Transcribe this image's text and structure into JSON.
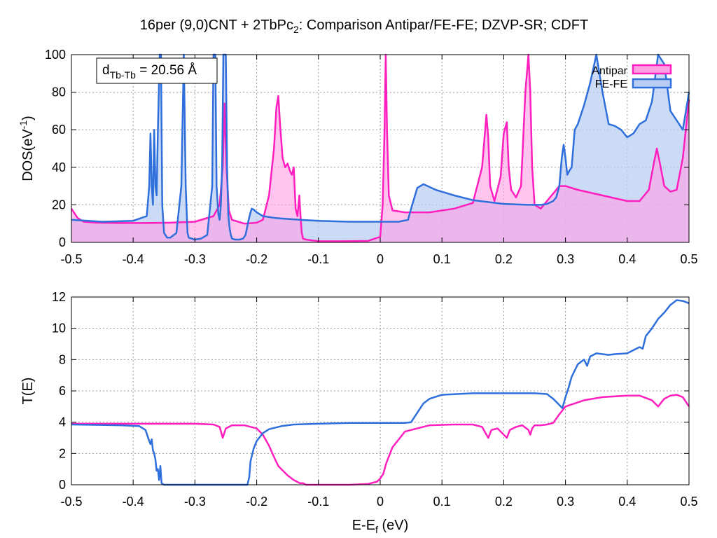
{
  "figure": {
    "title": {
      "main": "16per (9,0)CNT + 2TbPc",
      "sub": "2",
      "rest": ": Comparison Antipar/FE-FE; DZVP-SR; CDFT"
    },
    "annotation": {
      "base": "d",
      "sub": "Tb-Tb",
      "rest": " = 20.56 Å"
    },
    "top_ylabel": {
      "base": "DOS(eV",
      "sup": "-1",
      "close": ")"
    },
    "bottom_ylabel": "T(E)",
    "xlabel": {
      "base": "E-E",
      "sub": "f",
      "rest": " (eV)"
    }
  },
  "colors": {
    "antipar": "#ff1fbf",
    "antipar_fill": "#ff9fe4",
    "fefe": "#2f6fdc",
    "fefe_fill": "#b9cdf2",
    "overlap_fill": "#c5b0ea",
    "grid": "#9a9a9a"
  },
  "chart_data": [
    {
      "type": "area",
      "panel": "top",
      "xlim": [
        -0.5,
        0.5
      ],
      "ylim": [
        0,
        100
      ],
      "x_ticks": [
        "-0.5",
        "-0.4",
        "-0.3",
        "-0.2",
        "-0.1",
        "0",
        "0.1",
        "0.2",
        "0.3",
        "0.4",
        "0.5"
      ],
      "y_ticks": [
        "0",
        "20",
        "40",
        "60",
        "80",
        "100"
      ],
      "grid": true,
      "legend": "top-right",
      "series": [
        {
          "name": "Antipar",
          "x": [
            -0.5,
            -0.49,
            -0.48,
            -0.46,
            -0.42,
            -0.38,
            -0.34,
            -0.3,
            -0.27,
            -0.26,
            -0.255,
            -0.252,
            -0.249,
            -0.245,
            -0.24,
            -0.22,
            -0.2,
            -0.19,
            -0.18,
            -0.172,
            -0.168,
            -0.165,
            -0.162,
            -0.158,
            -0.154,
            -0.15,
            -0.146,
            -0.143,
            -0.14,
            -0.137,
            -0.134,
            -0.131,
            -0.129,
            -0.127,
            -0.125,
            -0.12,
            -0.1,
            -0.06,
            -0.02,
            0.0,
            0.004,
            0.007,
            0.009,
            0.011,
            0.014,
            0.02,
            0.04,
            0.08,
            0.12,
            0.15,
            0.165,
            0.172,
            0.175,
            0.178,
            0.185,
            0.195,
            0.2,
            0.205,
            0.208,
            0.212,
            0.22,
            0.228,
            0.235,
            0.24,
            0.243,
            0.246,
            0.25,
            0.26,
            0.27,
            0.28,
            0.29,
            0.3,
            0.32,
            0.36,
            0.4,
            0.42,
            0.435,
            0.443,
            0.448,
            0.453,
            0.46,
            0.47,
            0.48,
            0.49,
            0.5
          ],
          "y": [
            18,
            13,
            11,
            10.5,
            10.3,
            10.3,
            10.5,
            11,
            14,
            20,
            40,
            74,
            40,
            17,
            12,
            10,
            10.5,
            12,
            25,
            50,
            72,
            78,
            62,
            45,
            40,
            42,
            38,
            36,
            40,
            18,
            14,
            25,
            14,
            5,
            2,
            1.5,
            0.6,
            0.6,
            0.8,
            3,
            20,
            60,
            100,
            60,
            25,
            17,
            16,
            16,
            18,
            21,
            40,
            68,
            55,
            30,
            22,
            35,
            58,
            64,
            40,
            28,
            24,
            30,
            80,
            100,
            80,
            40,
            20,
            18,
            22,
            26,
            30,
            30,
            28,
            25,
            22,
            22,
            28,
            42,
            50,
            42,
            30,
            27,
            28,
            45,
            76
          ]
        },
        {
          "name": "FE-FE",
          "x": [
            -0.5,
            -0.45,
            -0.4,
            -0.378,
            -0.374,
            -0.372,
            -0.37,
            -0.368,
            -0.366,
            -0.364,
            -0.362,
            -0.36,
            -0.357,
            -0.355,
            -0.353,
            -0.35,
            -0.345,
            -0.34,
            -0.33,
            -0.322,
            -0.318,
            -0.315,
            -0.312,
            -0.31,
            -0.3,
            -0.29,
            -0.28,
            -0.272,
            -0.27,
            -0.267,
            -0.265,
            -0.262,
            -0.26,
            -0.258,
            -0.256,
            -0.254,
            -0.252,
            -0.25,
            -0.248,
            -0.246,
            -0.244,
            -0.242,
            -0.24,
            -0.235,
            -0.228,
            -0.222,
            -0.218,
            -0.213,
            -0.21,
            -0.208,
            -0.205,
            -0.2,
            -0.19,
            -0.17,
            -0.15,
            -0.13,
            -0.1,
            -0.05,
            0.0,
            0.03,
            0.045,
            0.05,
            0.06,
            0.07,
            0.09,
            0.12,
            0.15,
            0.2,
            0.24,
            0.26,
            0.27,
            0.28,
            0.285,
            0.29,
            0.294,
            0.297,
            0.3,
            0.303,
            0.306,
            0.31,
            0.315,
            0.32,
            0.33,
            0.34,
            0.35,
            0.36,
            0.37,
            0.38,
            0.39,
            0.4,
            0.41,
            0.42,
            0.43,
            0.44,
            0.45,
            0.46,
            0.47,
            0.48,
            0.49,
            0.5
          ],
          "y": [
            12,
            11,
            11.5,
            14,
            30,
            58,
            30,
            20,
            60,
            30,
            25,
            60,
            100,
            100,
            20,
            5,
            2.5,
            2.5,
            5,
            30,
            100,
            30,
            5,
            2.5,
            1.5,
            2,
            4,
            30,
            100,
            100,
            30,
            15,
            12,
            20,
            40,
            100,
            100,
            100,
            40,
            15,
            8,
            4,
            2,
            1.5,
            1.5,
            2,
            4,
            12,
            16,
            18,
            17.5,
            16,
            14,
            13,
            12.5,
            12,
            11.5,
            11,
            11,
            11,
            12,
            18,
            29,
            31,
            28,
            25,
            22.5,
            20.5,
            20,
            20,
            20.5,
            22,
            24,
            30,
            45,
            52,
            45,
            36,
            38,
            40,
            60,
            63,
            73,
            85,
            100,
            80,
            63,
            62,
            60,
            56,
            58,
            63,
            65,
            75,
            100,
            95,
            70,
            65,
            60,
            80
          ]
        }
      ]
    },
    {
      "type": "line",
      "panel": "bottom",
      "xlim": [
        -0.5,
        0.5
      ],
      "ylim": [
        0,
        12
      ],
      "x_ticks": [
        "-0.5",
        "-0.4",
        "-0.3",
        "-0.2",
        "-0.1",
        "0",
        "0.1",
        "0.2",
        "0.3",
        "0.4",
        "0.5"
      ],
      "y_ticks": [
        "0",
        "2",
        "4",
        "6",
        "8",
        "10",
        "12"
      ],
      "grid": true,
      "series": [
        {
          "name": "Antipar",
          "x": [
            -0.5,
            -0.4,
            -0.3,
            -0.27,
            -0.26,
            -0.255,
            -0.25,
            -0.24,
            -0.22,
            -0.2,
            -0.19,
            -0.18,
            -0.17,
            -0.165,
            -0.16,
            -0.15,
            -0.14,
            -0.13,
            -0.125,
            -0.12,
            -0.1,
            -0.05,
            -0.02,
            -0.005,
            0.0,
            0.005,
            0.01,
            0.02,
            0.04,
            0.08,
            0.12,
            0.15,
            0.165,
            0.172,
            0.175,
            0.18,
            0.19,
            0.2,
            0.205,
            0.21,
            0.22,
            0.23,
            0.24,
            0.243,
            0.246,
            0.25,
            0.26,
            0.27,
            0.28,
            0.29,
            0.3,
            0.33,
            0.36,
            0.4,
            0.42,
            0.44,
            0.45,
            0.46,
            0.47,
            0.48,
            0.49,
            0.5
          ],
          "y": [
            3.9,
            3.9,
            3.9,
            3.85,
            3.7,
            3.0,
            3.6,
            3.8,
            3.8,
            3.6,
            3.2,
            2.5,
            1.6,
            1.2,
            1.0,
            0.6,
            0.3,
            0.1,
            0.1,
            0.0,
            0.0,
            0.0,
            0.05,
            0.2,
            0.4,
            0.7,
            1.4,
            2.4,
            3.4,
            3.8,
            3.85,
            3.85,
            3.7,
            3.2,
            3.0,
            3.5,
            3.6,
            3.2,
            3.0,
            3.5,
            3.7,
            3.8,
            3.5,
            3.2,
            3.6,
            3.8,
            3.8,
            3.85,
            3.95,
            4.5,
            5.0,
            5.4,
            5.6,
            5.7,
            5.7,
            5.4,
            5.0,
            5.5,
            5.7,
            5.75,
            5.6,
            5.0
          ]
        },
        {
          "name": "FE-FE",
          "x": [
            -0.5,
            -0.42,
            -0.39,
            -0.38,
            -0.375,
            -0.372,
            -0.37,
            -0.368,
            -0.366,
            -0.364,
            -0.362,
            -0.36,
            -0.358,
            -0.356,
            -0.354,
            -0.35,
            -0.3,
            -0.25,
            -0.215,
            -0.212,
            -0.21,
            -0.205,
            -0.2,
            -0.19,
            -0.18,
            -0.16,
            -0.14,
            -0.1,
            -0.05,
            0.0,
            0.04,
            0.05,
            0.06,
            0.07,
            0.08,
            0.1,
            0.15,
            0.2,
            0.25,
            0.27,
            0.28,
            0.29,
            0.295,
            0.3,
            0.305,
            0.31,
            0.315,
            0.32,
            0.33,
            0.335,
            0.34,
            0.35,
            0.37,
            0.38,
            0.4,
            0.41,
            0.42,
            0.425,
            0.43,
            0.44,
            0.45,
            0.46,
            0.47,
            0.48,
            0.49,
            0.5
          ],
          "y": [
            3.85,
            3.8,
            3.75,
            3.5,
            2.9,
            2.6,
            2.9,
            2.2,
            2.0,
            1.6,
            0.9,
            1.0,
            0.3,
            1.2,
            0.1,
            0.0,
            0.0,
            0.0,
            0.0,
            0.5,
            1.5,
            2.3,
            2.8,
            3.3,
            3.55,
            3.75,
            3.85,
            3.9,
            3.95,
            3.95,
            3.95,
            4.0,
            4.6,
            5.2,
            5.5,
            5.75,
            5.85,
            5.85,
            5.85,
            5.8,
            5.5,
            5.1,
            4.9,
            5.6,
            6.2,
            6.9,
            7.3,
            7.7,
            8.0,
            7.6,
            8.2,
            8.4,
            8.3,
            8.35,
            8.4,
            8.6,
            8.8,
            8.7,
            9.5,
            10.0,
            10.6,
            11.0,
            11.5,
            11.8,
            11.75,
            11.6
          ]
        }
      ]
    }
  ]
}
